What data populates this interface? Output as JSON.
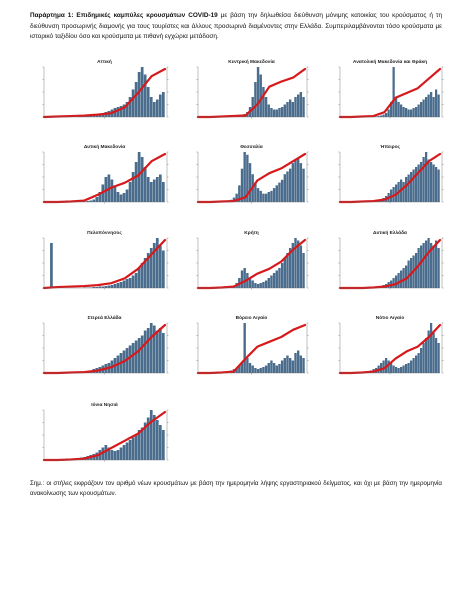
{
  "page": {
    "heading_bold": "Παράρτημα 1: Επιδημικές καμπύλες κρουσμάτων COVID-19",
    "heading_text": " με βάση την δηλωθείσα διεύθυνση μόνιμης κατοικίας του κρούσματος ή τη διεύθυνση προσωρινής διαμονής για τους τουρίστες και άλλους προσωρινά διαμένοντες στην Ελλάδα. Συμπεριλαμβάνονται τόσο κρούσματα με ιστορικό ταξιδίου όσο και κρούσματα με πιθανή εγχώρια μετάδοση.",
    "footnote": "Σημ.: οι στήλες εκφράζουν τον αριθμό νέων κρουσμάτων με βάση την ημερομηνία λήψης εργαστηριακού δείγματος, και όχι με βάση την ημερομηνία ανακοίνωσης των κρουσμάτων."
  },
  "colors": {
    "bars": "#4b6d8d",
    "line": "#d7191c",
    "axis": "#666666"
  },
  "chart_data": [
    {
      "type": "bar",
      "title": "Αττική",
      "series": [
        {
          "kind": "bar",
          "values": [
            0,
            0,
            1,
            1,
            0,
            0,
            0,
            0,
            0,
            0,
            0,
            1,
            1,
            2,
            2,
            3,
            4,
            5,
            6,
            8,
            10,
            12,
            15,
            18,
            20,
            22,
            25,
            30,
            40,
            55,
            70,
            90,
            100,
            85,
            60,
            40,
            30,
            35,
            45,
            50
          ]
        },
        {
          "kind": "line",
          "values": [
            0,
            1,
            2,
            3,
            5,
            8,
            20,
            50,
            85,
            100
          ]
        }
      ]
    },
    {
      "type": "bar",
      "title": "Κεντρική Μακεδονία",
      "series": [
        {
          "kind": "bar",
          "values": [
            0,
            0,
            0,
            0,
            0,
            0,
            0,
            0,
            0,
            0,
            1,
            1,
            1,
            2,
            2,
            3,
            4,
            6,
            10,
            20,
            40,
            70,
            100,
            85,
            60,
            40,
            25,
            18,
            15,
            15,
            18,
            20,
            25,
            30,
            35,
            30,
            40,
            45,
            50,
            40
          ]
        },
        {
          "kind": "line",
          "values": [
            0,
            0,
            1,
            2,
            3,
            25,
            60,
            70,
            78,
            95
          ]
        }
      ]
    },
    {
      "type": "bar",
      "title": "Ανατολική Μακεδονία και Θράκη",
      "series": [
        {
          "kind": "bar",
          "values": [
            0,
            0,
            0,
            0,
            0,
            0,
            0,
            0,
            0,
            1,
            0,
            0,
            0,
            1,
            1,
            2,
            3,
            5,
            8,
            15,
            30,
            100,
            40,
            30,
            25,
            20,
            18,
            15,
            15,
            18,
            20,
            25,
            30,
            35,
            40,
            45,
            50,
            40,
            55,
            45
          ]
        },
        {
          "kind": "line",
          "values": [
            0,
            0,
            1,
            2,
            10,
            40,
            50,
            60,
            80,
            100
          ]
        }
      ]
    },
    {
      "type": "bar",
      "title": "Δυτική Μακεδονία",
      "series": [
        {
          "kind": "bar",
          "values": [
            0,
            0,
            0,
            0,
            0,
            0,
            0,
            0,
            0,
            0,
            0,
            0,
            1,
            1,
            2,
            3,
            5,
            10,
            20,
            35,
            50,
            55,
            45,
            30,
            20,
            15,
            18,
            25,
            40,
            60,
            80,
            100,
            90,
            70,
            50,
            40,
            45,
            50,
            55,
            40
          ]
        },
        {
          "kind": "line",
          "values": [
            0,
            0,
            1,
            3,
            15,
            30,
            40,
            55,
            85,
            100
          ]
        }
      ]
    },
    {
      "type": "bar",
      "title": "Θεσσαλία",
      "series": [
        {
          "kind": "bar",
          "values": [
            0,
            0,
            0,
            0,
            0,
            0,
            0,
            0,
            0,
            1,
            1,
            2,
            4,
            8,
            15,
            30,
            60,
            90,
            85,
            70,
            50,
            35,
            25,
            20,
            15,
            15,
            18,
            20,
            25,
            30,
            35,
            40,
            50,
            55,
            60,
            70,
            75,
            80,
            70,
            60
          ]
        },
        {
          "kind": "line",
          "values": [
            0,
            0,
            1,
            2,
            10,
            45,
            60,
            70,
            85,
            100
          ]
        }
      ]
    },
    {
      "type": "bar",
      "title": "Ήπειρος",
      "series": [
        {
          "kind": "bar",
          "values": [
            0,
            0,
            0,
            0,
            0,
            0,
            0,
            0,
            0,
            0,
            1,
            1,
            1,
            2,
            3,
            4,
            6,
            8,
            12,
            18,
            25,
            30,
            35,
            40,
            45,
            40,
            50,
            55,
            60,
            65,
            70,
            75,
            80,
            90,
            100,
            85,
            80,
            75,
            70,
            65
          ]
        },
        {
          "kind": "line",
          "values": [
            0,
            0,
            1,
            2,
            5,
            15,
            35,
            60,
            85,
            100
          ]
        }
      ]
    },
    {
      "type": "bar",
      "title": "Πελοπόννησος",
      "series": [
        {
          "kind": "bar",
          "values": [
            0,
            0,
            90,
            0,
            0,
            0,
            0,
            0,
            0,
            0,
            0,
            0,
            0,
            1,
            1,
            1,
            2,
            2,
            3,
            3,
            4,
            5,
            6,
            8,
            10,
            12,
            15,
            18,
            20,
            25,
            30,
            40,
            50,
            60,
            70,
            80,
            90,
            100,
            85,
            75
          ]
        },
        {
          "kind": "line",
          "values": [
            0,
            2,
            3,
            4,
            6,
            10,
            20,
            40,
            70,
            100
          ]
        }
      ]
    },
    {
      "type": "bar",
      "title": "Κρήτη",
      "series": [
        {
          "kind": "bar",
          "values": [
            0,
            0,
            0,
            0,
            0,
            0,
            0,
            0,
            0,
            1,
            1,
            2,
            3,
            5,
            10,
            20,
            35,
            40,
            30,
            20,
            15,
            10,
            8,
            10,
            12,
            15,
            20,
            25,
            30,
            35,
            40,
            50,
            60,
            70,
            80,
            90,
            100,
            95,
            85,
            70
          ]
        },
        {
          "kind": "line",
          "values": [
            0,
            0,
            1,
            3,
            15,
            30,
            40,
            55,
            80,
            100
          ]
        }
      ]
    },
    {
      "type": "bar",
      "title": "Δυτική Ελλάδα",
      "series": [
        {
          "kind": "bar",
          "values": [
            0,
            0,
            0,
            0,
            0,
            0,
            0,
            0,
            0,
            0,
            0,
            0,
            1,
            1,
            2,
            3,
            4,
            6,
            8,
            12,
            15,
            20,
            25,
            30,
            35,
            40,
            45,
            55,
            60,
            65,
            70,
            80,
            85,
            90,
            95,
            100,
            90,
            85,
            95,
            80
          ]
        },
        {
          "kind": "line",
          "values": [
            0,
            0,
            0,
            1,
            3,
            8,
            20,
            45,
            75,
            100
          ]
        }
      ]
    },
    {
      "type": "bar",
      "title": "Στερεά Ελλάδα",
      "series": [
        {
          "kind": "bar",
          "values": [
            0,
            0,
            0,
            0,
            0,
            0,
            0,
            0,
            0,
            1,
            1,
            1,
            2,
            3,
            4,
            5,
            8,
            10,
            12,
            15,
            18,
            20,
            25,
            30,
            35,
            40,
            45,
            50,
            55,
            60,
            65,
            70,
            75,
            85,
            90,
            100,
            95,
            85,
            90,
            80
          ]
        },
        {
          "kind": "line",
          "values": [
            0,
            0,
            1,
            2,
            5,
            12,
            25,
            45,
            75,
            100
          ]
        }
      ]
    },
    {
      "type": "bar",
      "title": "Βόρειο Αιγαίο",
      "series": [
        {
          "kind": "bar",
          "values": [
            0,
            0,
            0,
            0,
            0,
            0,
            0,
            0,
            1,
            1,
            2,
            3,
            5,
            8,
            10,
            15,
            20,
            100,
            30,
            20,
            15,
            10,
            8,
            10,
            12,
            15,
            20,
            25,
            20,
            15,
            18,
            25,
            30,
            35,
            30,
            25,
            40,
            45,
            35,
            30
          ]
        },
        {
          "kind": "line",
          "values": [
            0,
            0,
            1,
            3,
            30,
            55,
            65,
            75,
            90,
            100
          ]
        }
      ]
    },
    {
      "type": "bar",
      "title": "Νότιο Αιγαίο",
      "series": [
        {
          "kind": "bar",
          "values": [
            0,
            0,
            0,
            0,
            0,
            0,
            0,
            0,
            1,
            1,
            2,
            3,
            5,
            8,
            10,
            15,
            20,
            25,
            30,
            25,
            20,
            15,
            12,
            10,
            12,
            15,
            18,
            20,
            25,
            30,
            35,
            40,
            50,
            60,
            70,
            85,
            100,
            80,
            70,
            60
          ]
        },
        {
          "kind": "line",
          "values": [
            0,
            0,
            1,
            3,
            10,
            30,
            45,
            55,
            75,
            100
          ]
        }
      ]
    },
    {
      "type": "bar",
      "title": "Ιόνια Νησιά",
      "series": [
        {
          "kind": "bar",
          "values": [
            0,
            0,
            0,
            0,
            0,
            0,
            0,
            0,
            1,
            1,
            2,
            3,
            5,
            6,
            8,
            10,
            12,
            15,
            20,
            25,
            30,
            25,
            20,
            18,
            20,
            25,
            30,
            35,
            40,
            45,
            50,
            60,
            65,
            75,
            85,
            100,
            90,
            80,
            70,
            60
          ]
        },
        {
          "kind": "line",
          "values": [
            0,
            0,
            1,
            3,
            10,
            25,
            40,
            55,
            80,
            100
          ]
        }
      ]
    }
  ]
}
